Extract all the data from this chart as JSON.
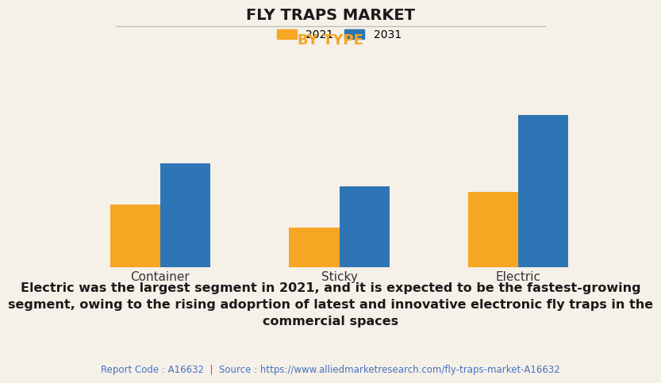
{
  "title": "FLY TRAPS MARKET",
  "subtitle": "BY TYPE",
  "categories": [
    "Container",
    "Sticky",
    "Electric"
  ],
  "series": [
    {
      "label": "2021",
      "values": [
        3.5,
        2.2,
        4.2
      ],
      "color": "#F5A623"
    },
    {
      "label": "2031",
      "values": [
        5.8,
        4.5,
        8.5
      ],
      "color": "#2E75B6"
    }
  ],
  "ylim": [
    0,
    10
  ],
  "background_color": "#F5F0E8",
  "plot_bg_color": "#F5F0E8",
  "grid_color": "#CCCCCC",
  "title_fontsize": 14,
  "subtitle_fontsize": 13,
  "subtitle_color": "#F5A623",
  "axis_tick_fontsize": 11,
  "legend_fontsize": 10,
  "annotation_text": "Electric was the largest segment in 2021, and it is expected to be the fastest-growing\nsegment, owing to the rising adoprtion of latest and innovative electronic fly traps in the\ncommercial spaces",
  "annotation_fontsize": 11.5,
  "footer_text": "Report Code : A16632  |  Source : https://www.alliedmarketresearch.com/fly-traps-market-A16632",
  "footer_fontsize": 8.5,
  "footer_color": "#4472C4",
  "bar_width": 0.28
}
